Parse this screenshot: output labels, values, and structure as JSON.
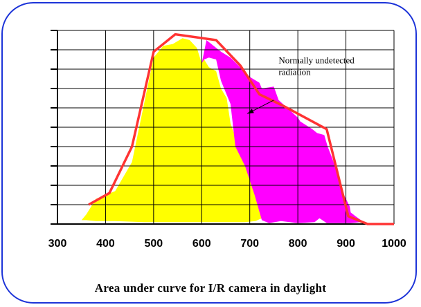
{
  "chart_data": {
    "type": "area",
    "title": "",
    "caption": "Area under curve for I/R camera in daylight",
    "xlabel": "",
    "ylabel": "",
    "xlim": [
      300,
      1000
    ],
    "ylim": [
      0,
      10
    ],
    "x_ticks": [
      300,
      400,
      500,
      600,
      700,
      800,
      900,
      1000
    ],
    "y_ticks": [
      0,
      1,
      2,
      3,
      4,
      5,
      6,
      7,
      8,
      9,
      10
    ],
    "y_tick_labels_shown": false,
    "grid": true,
    "legend": "none",
    "series": [
      {
        "role": "yellow-fill",
        "color": "#ffff00",
        "x": [
          350,
          360,
          380,
          420,
          455,
          500,
          520,
          540,
          560,
          575,
          590,
          600,
          605,
          615,
          630,
          640,
          652,
          660,
          670,
          690,
          710,
          725,
          712,
          690,
          650,
          600,
          550,
          480,
          420,
          380,
          360
        ],
        "y": [
          0.2,
          0.5,
          1.3,
          1.7,
          3.2,
          8.6,
          9.2,
          9.3,
          9.6,
          9.5,
          9.1,
          8.3,
          8.5,
          8.1,
          7.9,
          7.0,
          6.5,
          5.2,
          4.5,
          3.8,
          2.5,
          0.3,
          0.15,
          0.1,
          0.1,
          0.1,
          0.1,
          0.1,
          0.15,
          0.15,
          0.2
        ]
      },
      {
        "role": "magenta-fill",
        "color": "#ff00ff",
        "x": [
          600,
          610,
          625,
          640,
          660,
          680,
          700,
          720,
          725,
          750,
          760,
          800,
          805,
          830,
          840,
          855,
          862,
          870,
          880,
          890,
          900,
          908,
          910,
          920,
          940,
          930,
          910,
          860,
          845,
          835,
          800,
          765,
          740,
          725,
          710,
          690,
          670,
          660,
          640,
          630,
          615,
          605
        ],
        "y": [
          8.3,
          9.5,
          9.2,
          8.9,
          8.6,
          8.1,
          7.6,
          7.3,
          7.0,
          7.1,
          6.4,
          5.5,
          5.3,
          4.9,
          4.7,
          4.6,
          4.0,
          3.5,
          2.8,
          1.8,
          1.3,
          0.9,
          0.6,
          0.4,
          0.05,
          0.1,
          0.05,
          0.05,
          0.3,
          0.1,
          0.05,
          0.15,
          0.05,
          0.2,
          1.5,
          3.0,
          4.0,
          6.2,
          7.4,
          8.5,
          8.6,
          8.5
        ]
      },
      {
        "role": "red-outline",
        "color": "#ff3333",
        "x": [
          365,
          408,
          455,
          500,
          545,
          630,
          680,
          720,
          770,
          860,
          905,
          945,
          1000
        ],
        "y": [
          1.0,
          1.6,
          4.0,
          8.9,
          9.8,
          9.5,
          8.2,
          6.7,
          6.1,
          4.9,
          0.4,
          0.0,
          0.0
        ]
      }
    ],
    "annotations": [
      {
        "lines": [
          "Normally undetected",
          "radiation"
        ],
        "text_x": 760,
        "text_y": 8.3,
        "arrow_from": [
          750,
          6.4
        ],
        "arrow_to": [
          695,
          5.7
        ]
      }
    ]
  },
  "frame": {
    "border_color": "#1c33d8"
  }
}
